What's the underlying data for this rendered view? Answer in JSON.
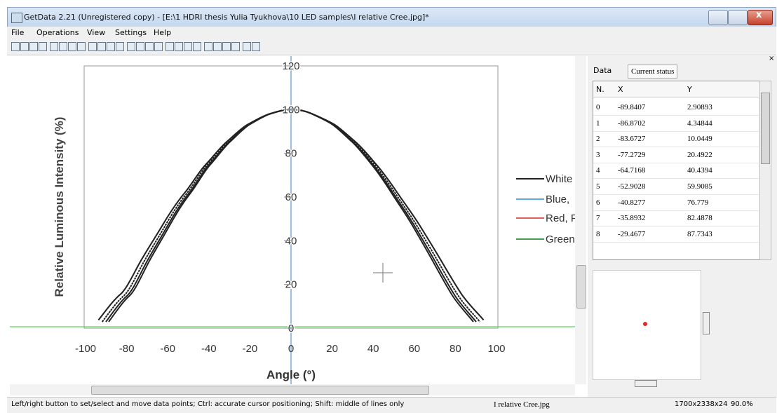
{
  "window": {
    "title": "GetData 2.21 (Unregistered copy) - [E:\\1 HDRI thesis Yulia Tyukhova\\10 LED samples\\I relative Cree.jpg]*"
  },
  "menu": [
    "File",
    "Operations",
    "View",
    "Settings",
    "Help"
  ],
  "plot": {
    "ylabel": "Relative Luminous Intensity (%)",
    "xlabel": "Angle (°)",
    "xticks": [
      -100,
      -80,
      -60,
      -40,
      -20,
      0,
      20,
      40,
      60,
      80,
      100
    ],
    "yticks": [
      0,
      20,
      40,
      60,
      80,
      100,
      120
    ],
    "legend": [
      "White",
      "Blue,",
      "Red, F",
      "Green"
    ]
  },
  "tabs": [
    "Data",
    "Current status"
  ],
  "table": {
    "columns": [
      "N.",
      "X",
      "Y"
    ],
    "rows": [
      [
        "0",
        "-89.8407",
        "2.90893"
      ],
      [
        "1",
        "-86.8702",
        "4.34844"
      ],
      [
        "2",
        "-83.6727",
        "10.0449"
      ],
      [
        "3",
        "-77.2729",
        "20.4922"
      ],
      [
        "4",
        "-64.7168",
        "40.4394"
      ],
      [
        "5",
        "-52.9028",
        "59.9085"
      ],
      [
        "6",
        "-40.8277",
        "76.779"
      ],
      [
        "7",
        "-35.8932",
        "82.4878"
      ],
      [
        "8",
        "-29.4677",
        "87.7343"
      ]
    ]
  },
  "status": {
    "hint": "Left/right button to set/select and move data points; Ctrl: accurate cursor positioning; Shift: middle of lines only",
    "file": "I relative Cree.jpg",
    "size": "1700x2338x24",
    "zoom": "90.0%"
  }
}
